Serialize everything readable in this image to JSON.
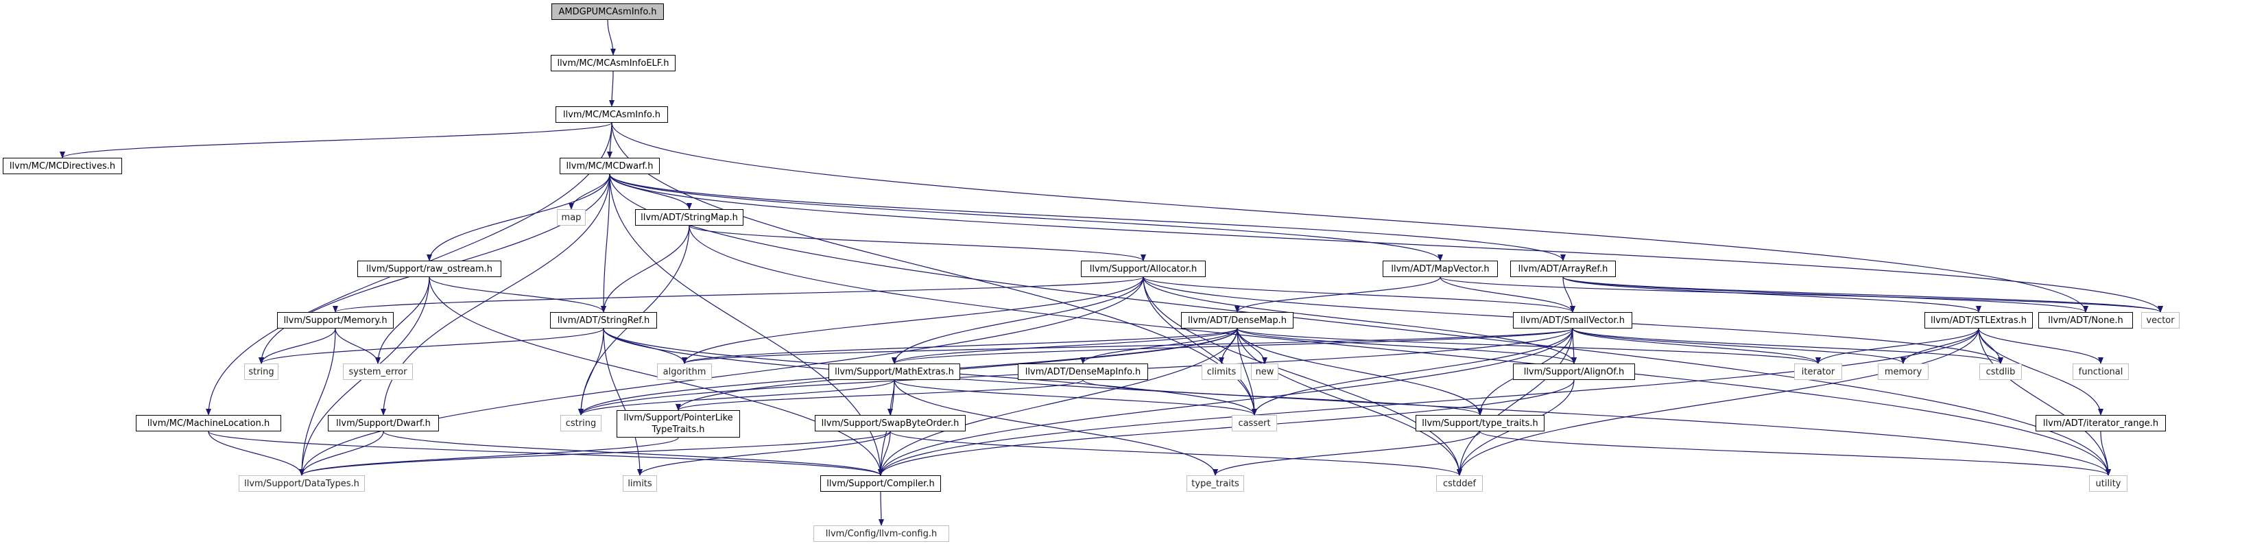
{
  "graph": {
    "title": "AMDGPUMCAsmInfo.h",
    "nodes": {
      "n_root": "AMDGPUMCAsmInfo.h",
      "n_mcasminfoelf": "llvm/MC/MCAsmInfoELF.h",
      "n_mcasminfo": "llvm/MC/MCAsmInfo.h",
      "n_mcdirectives": "llvm/MC/MCDirectives.h",
      "n_mcdwarf": "llvm/MC/MCDwarf.h",
      "n_map": "map",
      "n_stringmap": "llvm/ADT/StringMap.h",
      "n_raw_ostream": "llvm/Support/raw_ostream.h",
      "n_allocator": "llvm/Support/Allocator.h",
      "n_mapvector": "llvm/ADT/MapVector.h",
      "n_arrayref": "llvm/ADT/ArrayRef.h",
      "n_memory": "llvm/Support/Memory.h",
      "n_stringref": "llvm/ADT/StringRef.h",
      "n_densemap": "llvm/ADT/DenseMap.h",
      "n_smallvector": "llvm/ADT/SmallVector.h",
      "n_stlextras": "llvm/ADT/STLExtras.h",
      "n_none": "llvm/ADT/None.h",
      "n_vector": "vector",
      "n_string": "string",
      "n_system_error": "system_error",
      "n_algorithm": "algorithm",
      "n_climits": "climits",
      "n_new": "new",
      "n_iterator": "iterator",
      "n_memory_std": "memory",
      "n_cstdlib": "cstdlib",
      "n_functional": "functional",
      "n_mathextras": "llvm/Support/MathExtras.h",
      "n_densemapinfo": "llvm/ADT/DenseMapInfo.h",
      "n_alignof": "llvm/Support/AlignOf.h",
      "n_cstring": "cstring",
      "n_pointerlike": "llvm/Support/PointerLike\nTypeTraits.h",
      "n_cassert": "cassert",
      "n_type_traits_llvm": "llvm/Support/type_traits.h",
      "n_iterator_range": "llvm/ADT/iterator_range.h",
      "n_machinelocation": "llvm/MC/MachineLocation.h",
      "n_dwarf": "llvm/Support/Dwarf.h",
      "n_swapbyteorder": "llvm/Support/SwapByteOrder.h",
      "n_datatypes": "llvm/Support/DataTypes.h",
      "n_limits": "limits",
      "n_compiler": "llvm/Support/Compiler.h",
      "n_type_traits": "type_traits",
      "n_cstddef": "cstddef",
      "n_utility": "utility",
      "n_llvm_config": "llvm/Config/llvm-config.h"
    },
    "edge_color": "#191970"
  }
}
